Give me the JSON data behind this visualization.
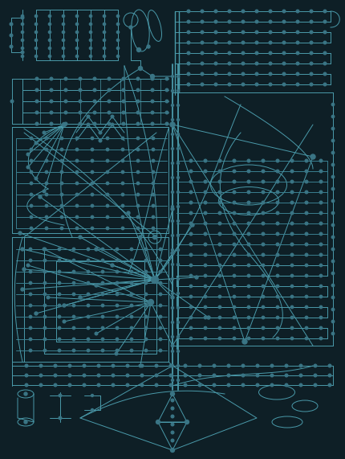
{
  "bg_color": "#0e1f26",
  "lc": "#4a9aaa",
  "lc2": "#3a8090",
  "nc": "#3a7585",
  "lw": 0.7,
  "nr": 1.8,
  "figsize": [
    4.31,
    5.71
  ],
  "dpi": 100
}
